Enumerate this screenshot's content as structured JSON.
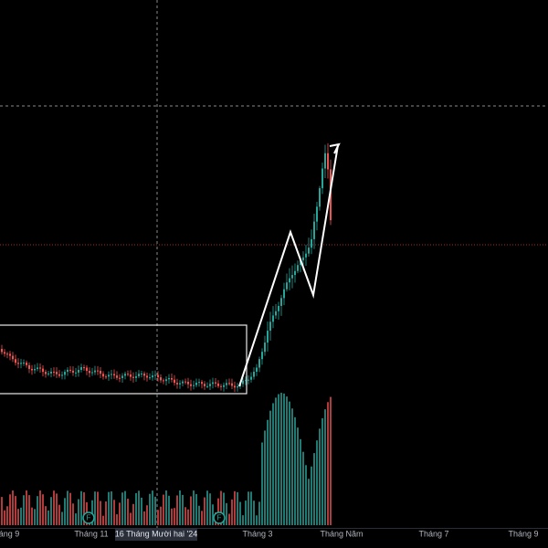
{
  "time_axis": {
    "labels": [
      "áng 9",
      "Tháng 11",
      "16 Tháng Mười hai '24",
      "Tháng 3",
      "Tháng Năm",
      "Tháng 7",
      "Tháng 9"
    ]
  },
  "markers": [
    {
      "label": "F"
    },
    {
      "label": "F"
    }
  ]
}
